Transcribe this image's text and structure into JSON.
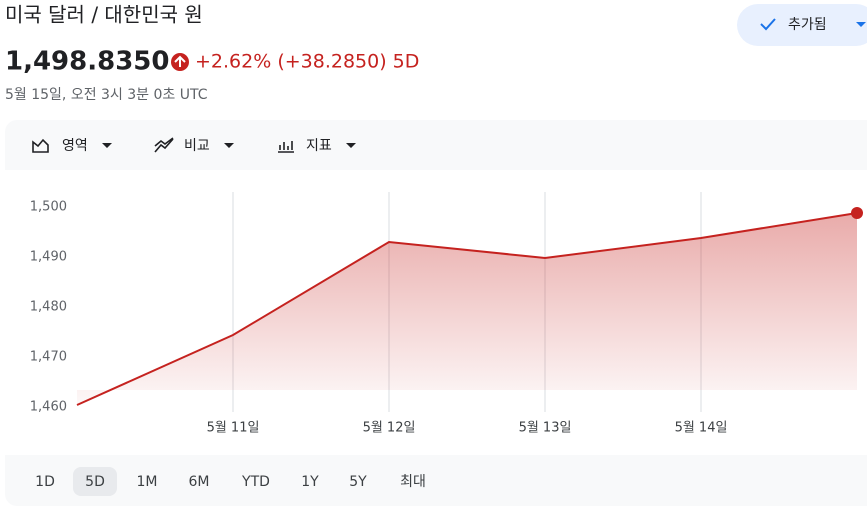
{
  "header": {
    "title": "미국 달러 / 대한민국 원",
    "button": "추가됨",
    "price": "1,498.8350",
    "change": "+2.62% (+38.2850) 5D",
    "timestamp": "5월 15일, 오전 3시 3분 0초 UTC"
  },
  "toolbar": [
    "영역",
    "비교",
    "지표"
  ],
  "ranges": {
    "items": [
      "1D",
      "5D",
      "1M",
      "6M",
      "YTD",
      "1Y",
      "5Y",
      "최대"
    ],
    "selected": "5D"
  },
  "chart_data": {
    "type": "area",
    "categories": [
      null,
      "5월 11일",
      "5월 12일",
      "5월 13일",
      "5월 14일",
      null
    ],
    "values": [
      1460.4,
      1474.4,
      1493.0,
      1489.8,
      1493.8,
      1498.8
    ],
    "color": "#c5221f",
    "ylim": [
      1457,
      1503
    ],
    "yticks": [
      {
        "value": 1460,
        "label": "1,460"
      },
      {
        "value": 1470,
        "label": "1,470"
      },
      {
        "value": 1480,
        "label": "1,480"
      },
      {
        "value": 1490,
        "label": "1,490"
      },
      {
        "value": 1500,
        "label": "1,500"
      }
    ],
    "grid": true
  }
}
